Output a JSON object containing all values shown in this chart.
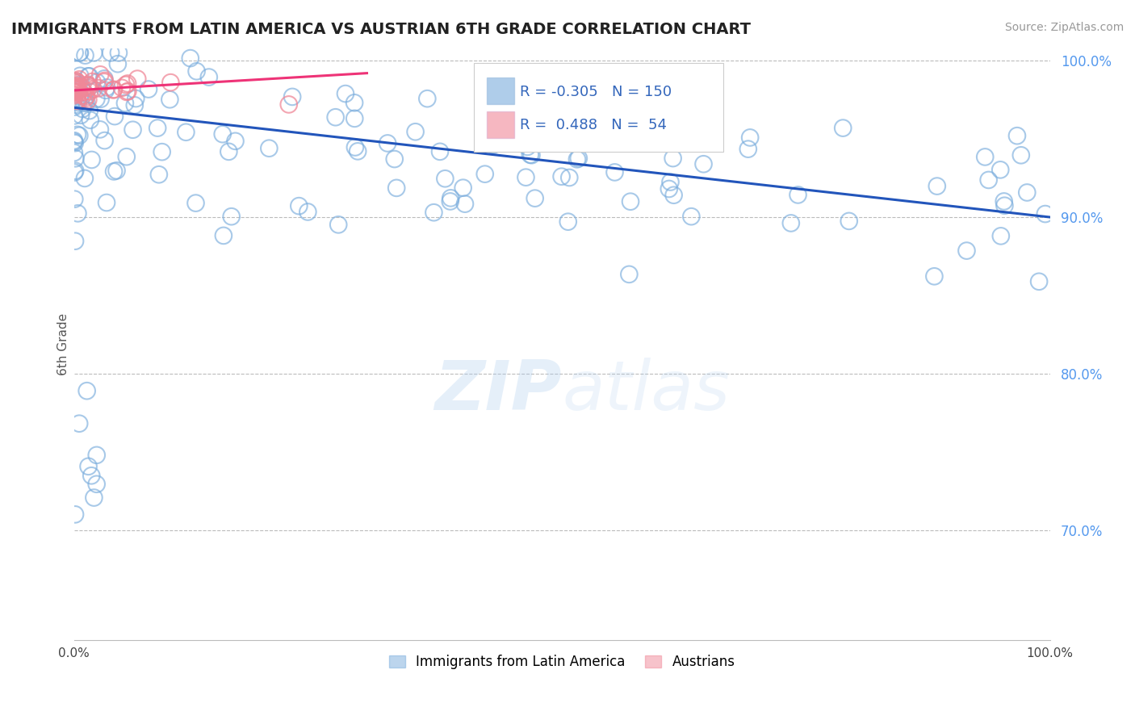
{
  "title": "IMMIGRANTS FROM LATIN AMERICA VS AUSTRIAN 6TH GRADE CORRELATION CHART",
  "source_text": "Source: ZipAtlas.com",
  "ylabel": "6th Grade",
  "xlim": [
    0.0,
    1.0
  ],
  "ylim": [
    0.63,
    1.008
  ],
  "yticks": [
    0.7,
    0.8,
    0.9,
    1.0
  ],
  "ytick_labels": [
    "70.0%",
    "80.0%",
    "90.0%",
    "100.0%"
  ],
  "blue_R": -0.305,
  "blue_N": 150,
  "pink_R": 0.488,
  "pink_N": 54,
  "blue_color": "#7aaddd",
  "pink_color": "#f08898",
  "blue_line_color": "#2255bb",
  "pink_line_color": "#ee3377",
  "legend_label_blue": "Immigrants from Latin America",
  "legend_label_pink": "Austrians",
  "background_color": "#ffffff",
  "grid_color": "#bbbbbb",
  "title_color": "#222222",
  "blue_trend_x": [
    0.0,
    1.0
  ],
  "blue_trend_y": [
    0.97,
    0.9
  ],
  "pink_trend_x": [
    0.0,
    0.3
  ],
  "pink_trend_y": [
    0.981,
    0.992
  ]
}
